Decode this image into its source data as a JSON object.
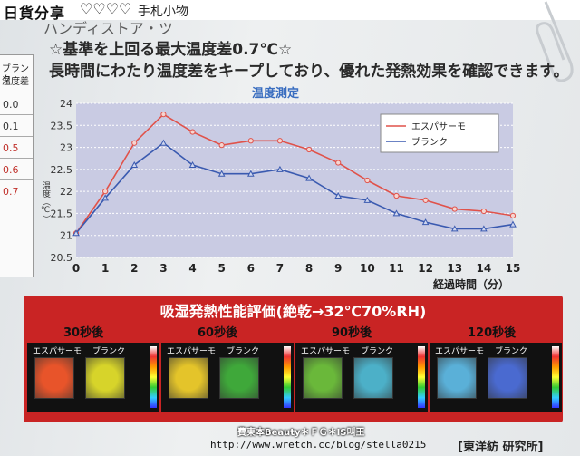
{
  "banner": {
    "title": "日貨分享",
    "hearts": "♡♡♡♡",
    "tail": "手札小物"
  },
  "header_cut": "ハンディストア・ツ",
  "headline": {
    "line1": "☆基準を上回る最大温度差0.7℃☆",
    "line2": "長時間にわたり温度差をキープしており、優れた発熱効果を確認できます。"
  },
  "side_table": {
    "head": "ブランク",
    "head2": "温度差",
    "cells": [
      "0.0",
      "0.1",
      "0.5",
      "0.6",
      "0.7"
    ]
  },
  "chart_data": {
    "type": "line",
    "title": "温度測定",
    "xlabel": "経過時間（分）",
    "ylabel": "温度（℃）",
    "x": [
      0,
      1,
      2,
      3,
      4,
      5,
      6,
      7,
      8,
      9,
      10,
      11,
      12,
      13,
      14,
      15
    ],
    "ylim": [
      20.5,
      24
    ],
    "yticks": [
      20.5,
      21,
      21.5,
      22,
      22.5,
      23,
      23.5,
      24
    ],
    "legend_position": "top-right",
    "grid": true,
    "series": [
      {
        "name": "エスパサーモ",
        "color": "#e0524a",
        "values": [
          21.05,
          22.0,
          23.1,
          23.75,
          23.35,
          23.05,
          23.15,
          23.15,
          22.95,
          22.65,
          22.25,
          21.9,
          21.8,
          21.6,
          21.55,
          21.45
        ]
      },
      {
        "name": "ブランク",
        "color": "#3a5ab0",
        "values": [
          21.05,
          21.85,
          22.6,
          23.1,
          22.6,
          22.4,
          22.4,
          22.5,
          22.3,
          21.9,
          21.8,
          21.5,
          21.3,
          21.15,
          21.15,
          21.25
        ]
      }
    ]
  },
  "bottom_panel": {
    "title": "吸湿発熱性能評価(絶乾→32℃70%RH)",
    "times": [
      "30秒後",
      "60秒後",
      "90秒後",
      "120秒後"
    ],
    "left_label": "エスパサーモ",
    "right_label": "ブランク",
    "colors": [
      [
        "#e8542a",
        "#d7d42a"
      ],
      [
        "#e4c42a",
        "#3fa83a"
      ],
      [
        "#6ab83a",
        "#4cb0c8"
      ],
      [
        "#5ab0d8",
        "#4a6ad0"
      ]
    ]
  },
  "credit": "費東本Beauty＊ＦＧ＊IS叫王",
  "credit_url": "http://www.wretch.cc/blog/stella0215",
  "source": "[東洋紡 研究所]"
}
